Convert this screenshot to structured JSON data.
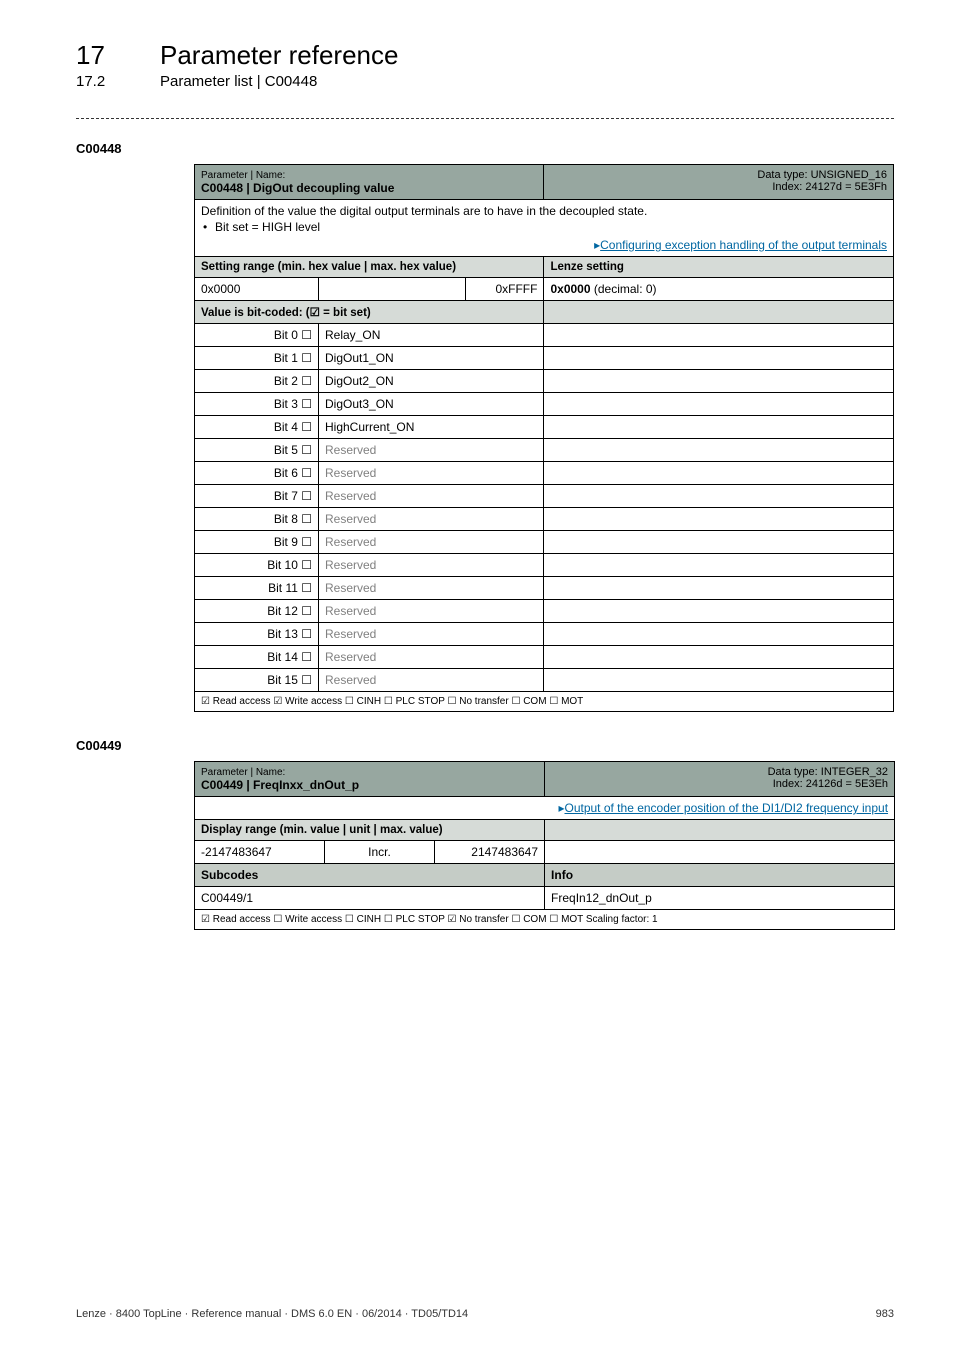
{
  "theme": {
    "header_bg": "#97a7a0",
    "section_bg": "#d6dbd7",
    "subhdr_bg": "#c5ccc6",
    "link_color": "#0066a1",
    "grey_text": "#808080",
    "border_color": "#000000"
  },
  "header": {
    "chapter_number": "17",
    "chapter_title": "Parameter reference",
    "section_number": "17.2",
    "section_title": "Parameter list | C00448"
  },
  "param1": {
    "id": "C00448",
    "top_label": "Parameter | Name:",
    "name_line": "C00448 | DigOut decoupling value",
    "datatype": "Data type: UNSIGNED_16",
    "index_line": "Index: 24127d = 5E3Fh",
    "desc_main": "Definition of the value the digital output terminals are to have in the decoupled state.",
    "desc_bullet": "Bit set = HIGH level",
    "desc_link": "Configuring exception handling of the output terminals",
    "setting_label": "Setting range (min. hex value | max. hex value)",
    "lenze_label": "Lenze setting",
    "min_hex": "0x0000",
    "max_hex": "0xFFFF",
    "lenze_val_bold": "0x0000",
    "lenze_val_rest": "  (decimal: 0)",
    "bitcoded_label": "Value is bit-coded:  (☑ = bit set)",
    "bits": [
      {
        "bit": "Bit 0  ☐",
        "name": "Relay_ON",
        "grey": false
      },
      {
        "bit": "Bit 1  ☐",
        "name": "DigOut1_ON",
        "grey": false
      },
      {
        "bit": "Bit 2  ☐",
        "name": "DigOut2_ON",
        "grey": false
      },
      {
        "bit": "Bit 3  ☐",
        "name": "DigOut3_ON",
        "grey": false
      },
      {
        "bit": "Bit 4  ☐",
        "name": "HighCurrent_ON",
        "grey": false
      },
      {
        "bit": "Bit 5  ☐",
        "name": "Reserved",
        "grey": true
      },
      {
        "bit": "Bit 6  ☐",
        "name": "Reserved",
        "grey": true
      },
      {
        "bit": "Bit 7  ☐",
        "name": "Reserved",
        "grey": true
      },
      {
        "bit": "Bit 8  ☐",
        "name": "Reserved",
        "grey": true
      },
      {
        "bit": "Bit 9  ☐",
        "name": "Reserved",
        "grey": true
      },
      {
        "bit": "Bit 10  ☐",
        "name": "Reserved",
        "grey": true
      },
      {
        "bit": "Bit 11  ☐",
        "name": "Reserved",
        "grey": true
      },
      {
        "bit": "Bit 12  ☐",
        "name": "Reserved",
        "grey": true
      },
      {
        "bit": "Bit 13  ☐",
        "name": "Reserved",
        "grey": true
      },
      {
        "bit": "Bit 14  ☐",
        "name": "Reserved",
        "grey": true
      },
      {
        "bit": "Bit 15  ☐",
        "name": "Reserved",
        "grey": true
      }
    ],
    "footnote": "☑ Read access   ☑ Write access   ☐ CINH   ☐ PLC STOP   ☐ No transfer   ☐ COM   ☐ MOT"
  },
  "param2": {
    "id": "C00449",
    "top_label": "Parameter | Name:",
    "name_line": "C00449 | FreqInxx_dnOut_p",
    "datatype": "Data type: INTEGER_32",
    "index_line": "Index: 24126d = 5E3Eh",
    "desc_link": "Output of the encoder position of the DI1/DI2 frequency input",
    "display_label": "Display range (min. value | unit | max. value)",
    "min": "-2147483647",
    "unit": "Incr.",
    "max": "2147483647",
    "subcodes_label": "Subcodes",
    "info_label": "Info",
    "subcode_code": "C00449/1",
    "subcode_info": "FreqIn12_dnOut_p",
    "footnote": "☑ Read access   ☐ Write access   ☐ CINH   ☐ PLC STOP   ☑ No transfer   ☐ COM   ☐ MOT    Scaling factor: 1"
  },
  "footer": {
    "left": "Lenze · 8400 TopLine · Reference manual · DMS 6.0 EN · 06/2014 · TD05/TD14",
    "page": "983"
  }
}
